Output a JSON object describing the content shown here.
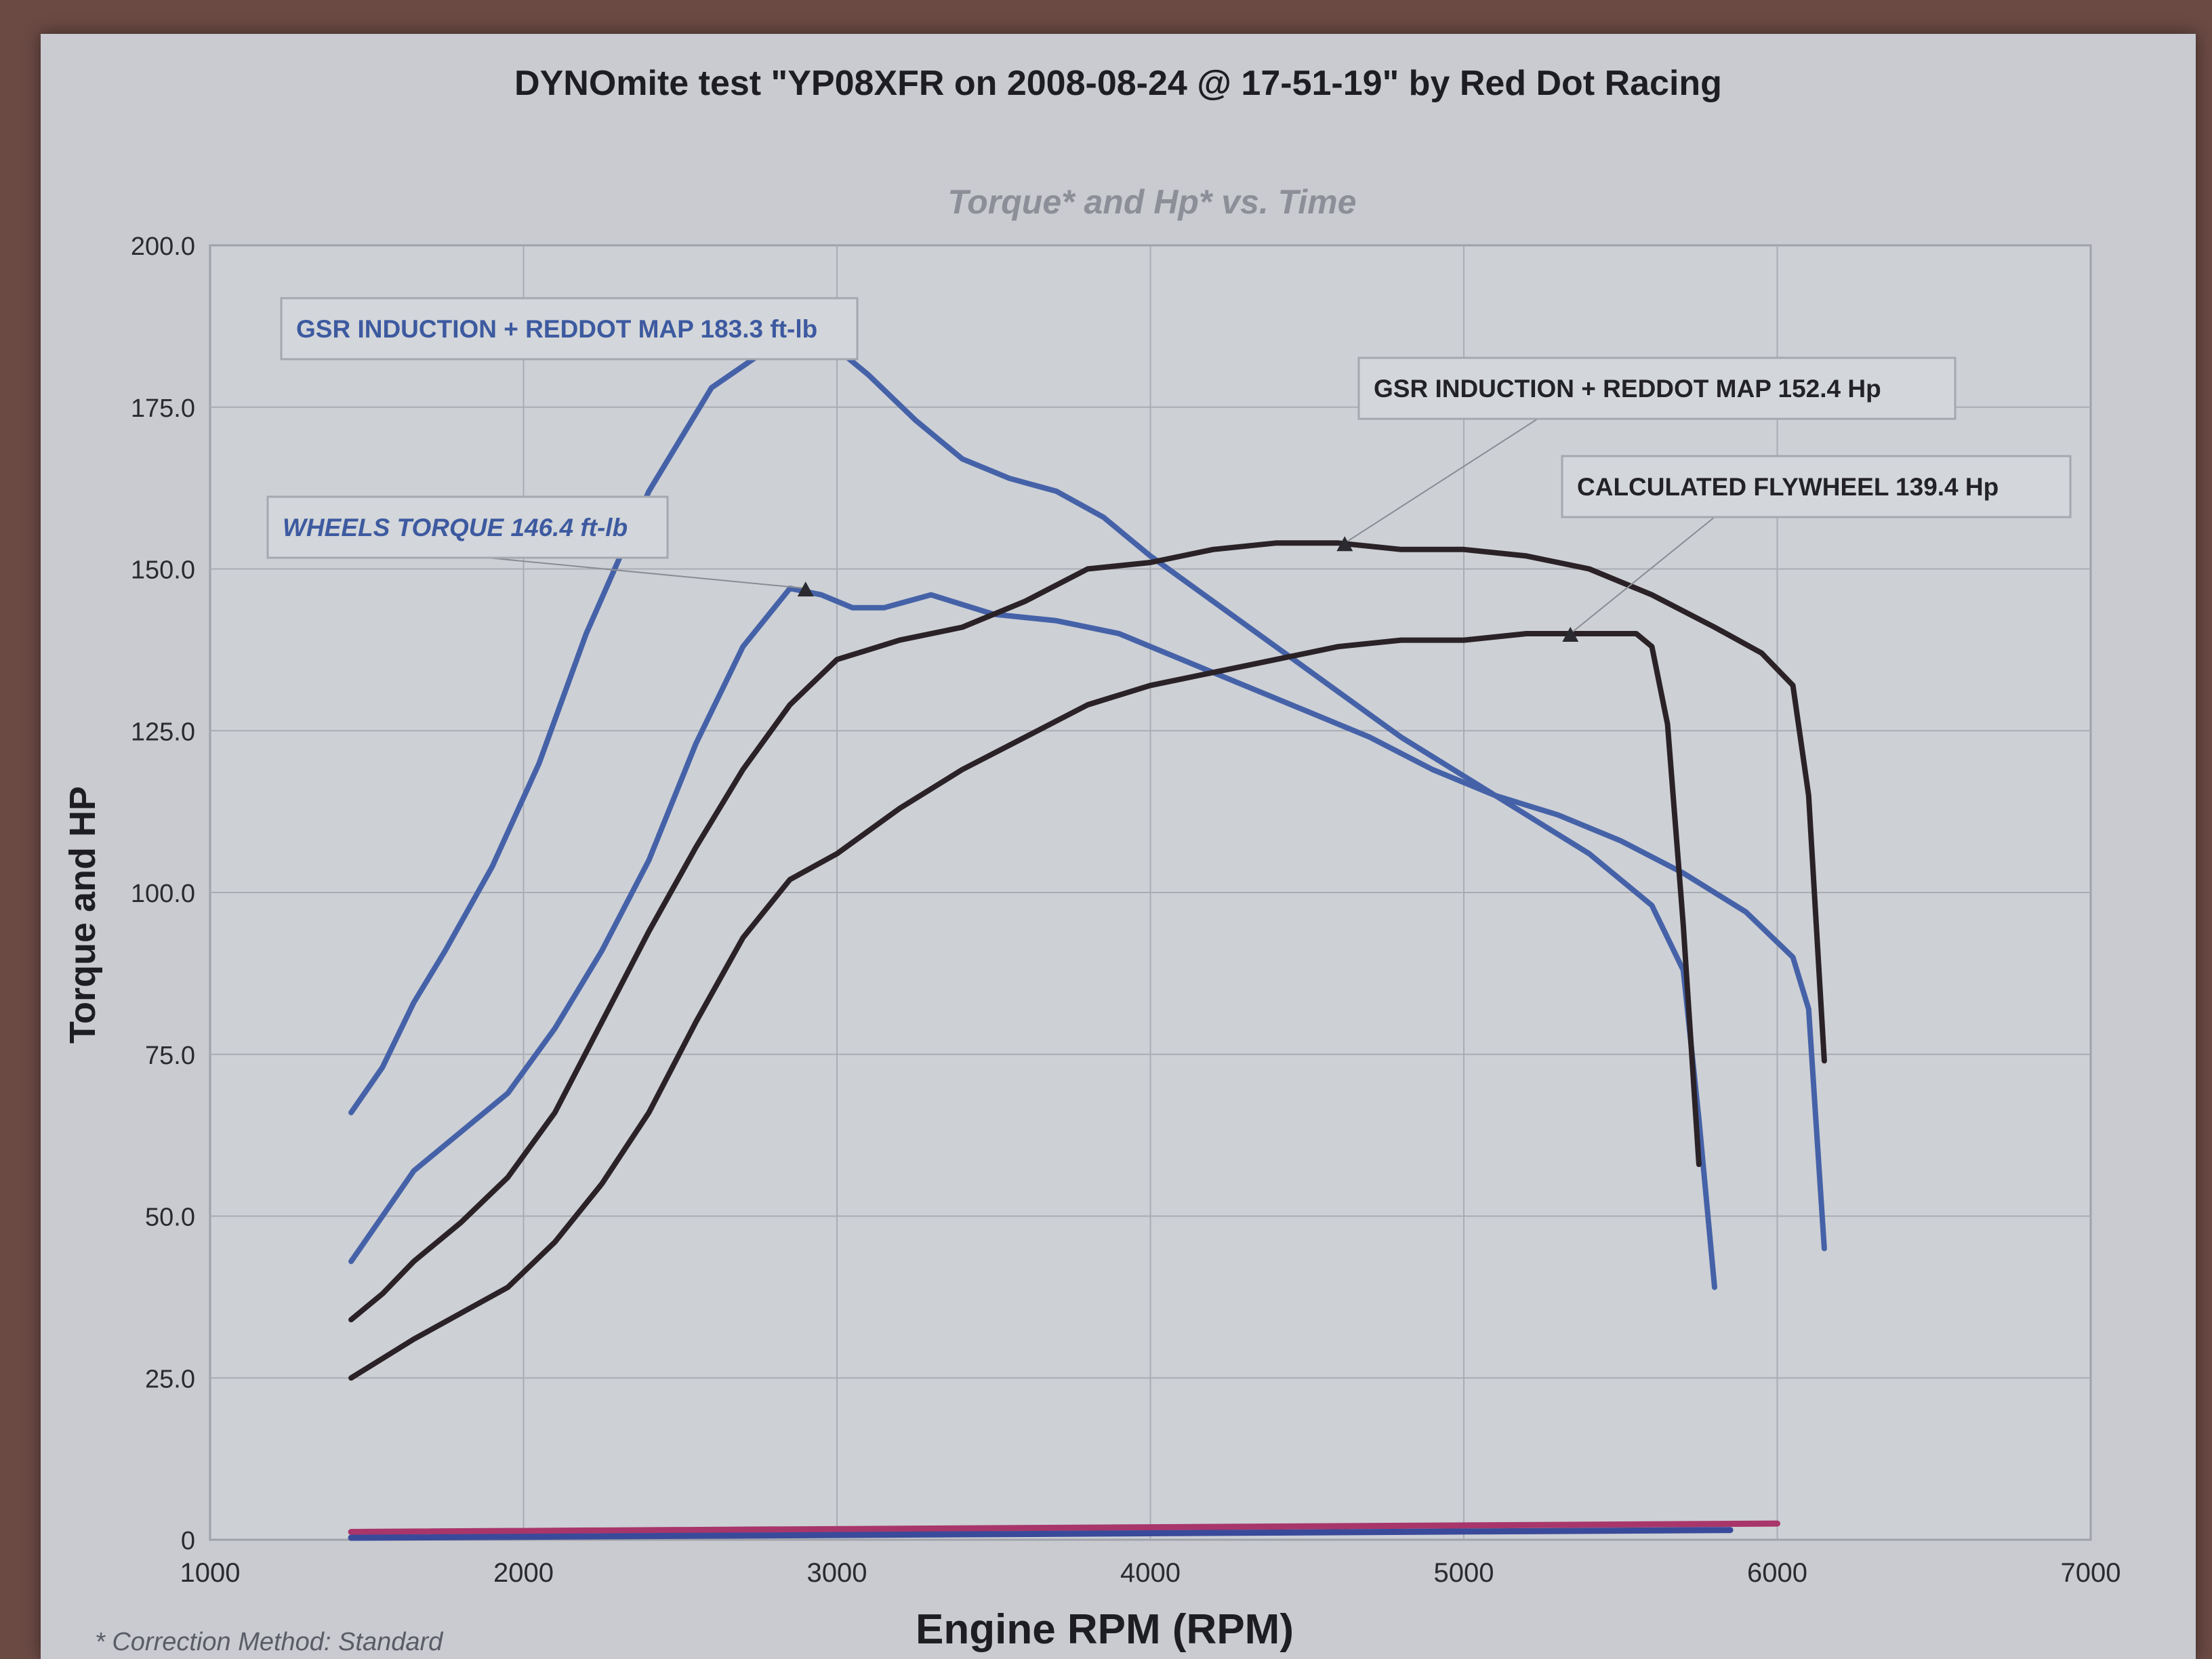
{
  "chart_data": {
    "type": "line",
    "title": "DYNOmite test \"YP08XFR on 2008-08-24 @ 17-51-19\" by Red Dot Racing",
    "subtitle": "Torque* and Hp* vs. Time",
    "xlabel": "Engine RPM (RPM)",
    "ylabel": "Torque and HP",
    "footnote": "* Correction Method: Standard",
    "xlim": [
      1000,
      7000
    ],
    "ylim": [
      0,
      200
    ],
    "x_ticks": [
      "1000",
      "2000",
      "3000",
      "4000",
      "5000",
      "6000",
      "7000"
    ],
    "y_ticks": [
      "0",
      "25.0",
      "50.0",
      "75.0",
      "100.0",
      "125.0",
      "150.0",
      "175.0",
      "200.0"
    ],
    "grid": true,
    "series": [
      {
        "name": "GSR INDUCTION + REDDOT MAP 183.3 ft-lb",
        "color": "#4562a8",
        "x": [
          1450,
          1550,
          1650,
          1750,
          1900,
          2050,
          2200,
          2400,
          2600,
          2750,
          2900,
          3000,
          3100,
          3250,
          3400,
          3550,
          3700,
          3850,
          4000,
          4200,
          4400,
          4600,
          4800,
          5000,
          5200,
          5400,
          5600,
          5700,
          5750,
          5800
        ],
        "values": [
          66,
          73,
          83,
          91,
          104,
          120,
          140,
          162,
          178,
          183,
          185,
          184,
          180,
          173,
          167,
          164,
          162,
          158,
          152,
          145,
          138,
          131,
          124,
          118,
          112,
          106,
          98,
          88,
          65,
          39
        ]
      },
      {
        "name": "WHEELS TORQUE 146.4 ft-lb",
        "color": "#4562a8",
        "x": [
          1450,
          1550,
          1650,
          1800,
          1950,
          2100,
          2250,
          2400,
          2550,
          2700,
          2850,
          2950,
          3050,
          3150,
          3300,
          3500,
          3700,
          3900,
          4100,
          4300,
          4500,
          4700,
          4900,
          5100,
          5300,
          5500,
          5700,
          5900,
          6050,
          6100,
          6150
        ],
        "values": [
          43,
          50,
          57,
          63,
          69,
          79,
          91,
          105,
          123,
          138,
          147,
          146,
          144,
          144,
          146,
          143,
          142,
          140,
          136,
          132,
          128,
          124,
          119,
          115,
          112,
          108,
          103,
          97,
          90,
          82,
          45
        ]
      },
      {
        "name": "GSR INDUCTION + REDDOT MAP 152.4 Hp",
        "color": "#2a2226",
        "x": [
          1450,
          1550,
          1650,
          1800,
          1950,
          2100,
          2250,
          2400,
          2550,
          2700,
          2850,
          3000,
          3200,
          3400,
          3600,
          3800,
          4000,
          4200,
          4400,
          4600,
          4800,
          5000,
          5200,
          5400,
          5600,
          5800,
          5950,
          6050,
          6100,
          6150
        ],
        "values": [
          34,
          38,
          43,
          49,
          56,
          66,
          80,
          94,
          107,
          119,
          129,
          136,
          139,
          141,
          145,
          150,
          151,
          153,
          154,
          154,
          153,
          153,
          152,
          150,
          146,
          141,
          137,
          132,
          115,
          74
        ]
      },
      {
        "name": "CALCULATED FLYWHEEL 139.4 Hp",
        "color": "#2a2226",
        "x": [
          1450,
          1550,
          1650,
          1800,
          1950,
          2100,
          2250,
          2400,
          2550,
          2700,
          2850,
          3000,
          3200,
          3400,
          3600,
          3800,
          4000,
          4200,
          4400,
          4600,
          4800,
          5000,
          5200,
          5400,
          5550,
          5600,
          5650,
          5700,
          5750
        ],
        "values": [
          25,
          28,
          31,
          35,
          39,
          46,
          55,
          66,
          80,
          93,
          102,
          106,
          113,
          119,
          124,
          129,
          132,
          134,
          136,
          138,
          139,
          139,
          140,
          140,
          140,
          138,
          126,
          95,
          58
        ]
      }
    ],
    "baselines": [
      {
        "color": "#a8366a",
        "x": [
          1450,
          6000
        ],
        "values": [
          1.2,
          2.5
        ]
      },
      {
        "color": "#3a4a9a",
        "x": [
          1450,
          5850
        ],
        "values": [
          0.3,
          1.5
        ]
      }
    ],
    "annotations": [
      {
        "text": "GSR INDUCTION + REDDOT MAP 183.3 ft-lb",
        "color": "#3d5aa0",
        "italic": false,
        "marker": [
          2950,
          184.5
        ]
      },
      {
        "text": "WHEELS TORQUE 146.4 ft-lb",
        "color": "#3d5aa0",
        "italic": true,
        "marker": [
          2900,
          147
        ]
      },
      {
        "text": "GSR INDUCTION + REDDOT MAP 152.4 Hp",
        "color": "#222228",
        "italic": false,
        "marker": [
          4620,
          154
        ]
      },
      {
        "text": "CALCULATED FLYWHEEL 139.4 Hp",
        "color": "#222228",
        "italic": false,
        "marker": [
          5340,
          140
        ]
      }
    ]
  }
}
